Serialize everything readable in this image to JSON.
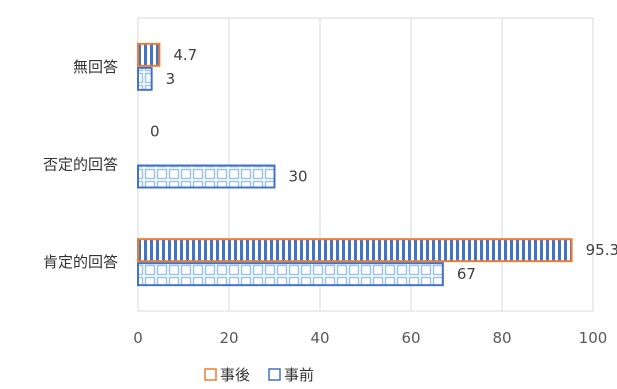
{
  "chart_data": {
    "type": "bar",
    "orientation": "horizontal",
    "title": "",
    "xlabel": "",
    "ylabel": "",
    "categories": [
      "無回答",
      "否定的回答",
      "肯定的回答"
    ],
    "series": [
      {
        "name": "事後",
        "values": [
          4.7,
          0,
          95.3
        ],
        "labels": [
          "4.7",
          "0",
          "95.3"
        ],
        "color": "#ED7D31",
        "fill": "#4472C4"
      },
      {
        "name": "事前",
        "values": [
          3,
          30,
          67
        ],
        "labels": [
          "3",
          "30",
          "67"
        ],
        "color": "#4472C4",
        "fill": "#BDD7EE"
      }
    ],
    "xlim": [
      0,
      100
    ],
    "xticks": [
      "0",
      "20",
      "40",
      "60",
      "80",
      "100"
    ],
    "grid": true,
    "legend": "bottom"
  }
}
